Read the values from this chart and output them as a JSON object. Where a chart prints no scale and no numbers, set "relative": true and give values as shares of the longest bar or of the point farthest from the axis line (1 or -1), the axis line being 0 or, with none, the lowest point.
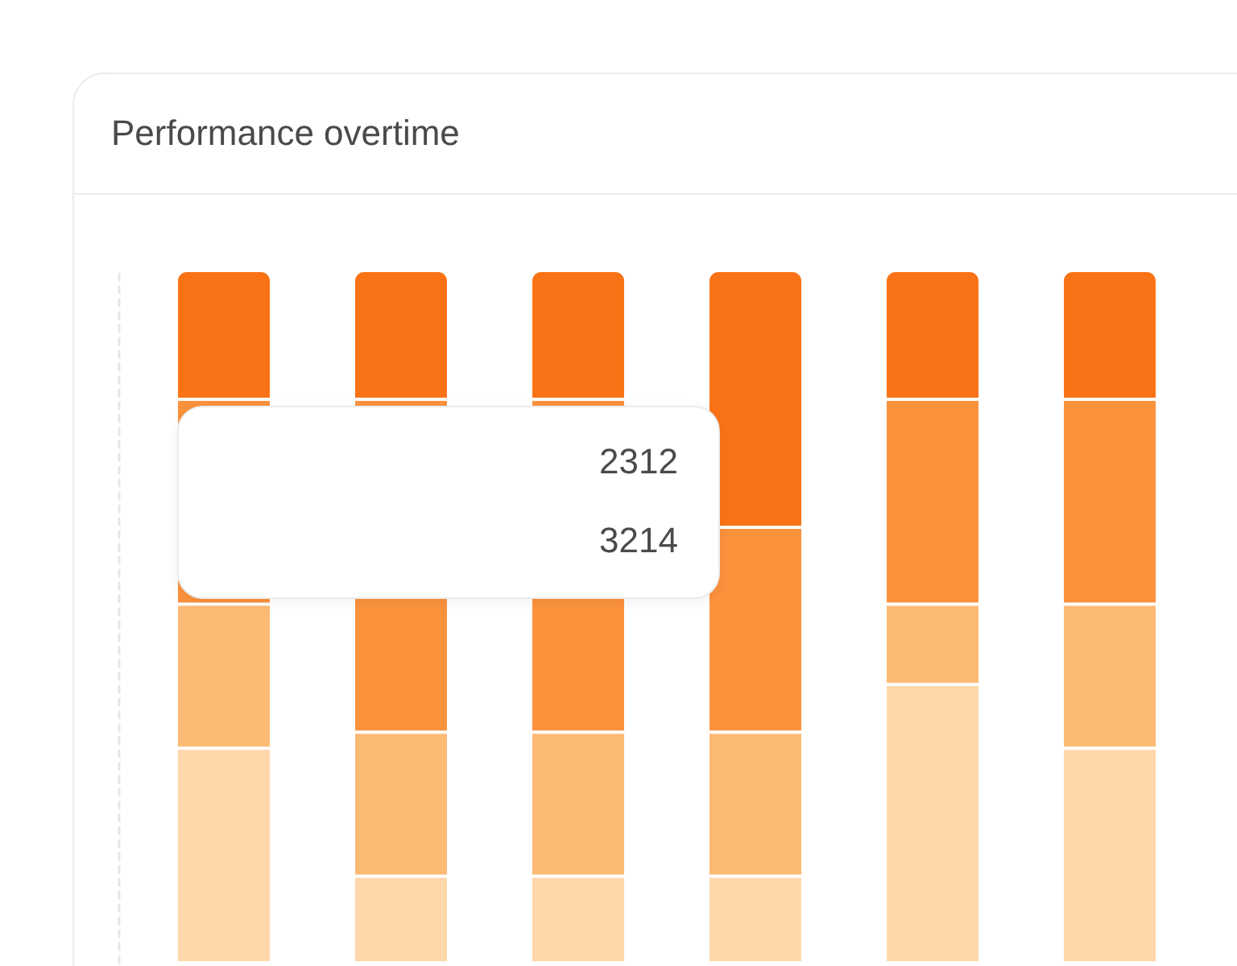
{
  "chart_data": {
    "type": "bar",
    "title": "Performance overtime",
    "categories": [
      null,
      null,
      null,
      null,
      null,
      null
    ],
    "stacked": true,
    "relative": true,
    "tick_labels": false,
    "series": [
      {
        "color": "#fed7aa",
        "values": [
          0.31,
          0.125,
          0.125,
          0.125,
          0.402,
          0.31
        ]
      },
      {
        "color": "#fdba74",
        "values": [
          0.208,
          0.208,
          0.208,
          0.208,
          0.116,
          0.208
        ]
      },
      {
        "color": "#fb923c",
        "values": [
          0.296,
          0.481,
          0.481,
          0.296,
          0.296,
          0.296
        ]
      },
      {
        "color": "#f97316",
        "values": [
          0.186,
          0.186,
          0.186,
          0.371,
          0.186,
          0.186
        ]
      }
    ],
    "annotations": [
      "2312",
      "3214"
    ]
  }
}
